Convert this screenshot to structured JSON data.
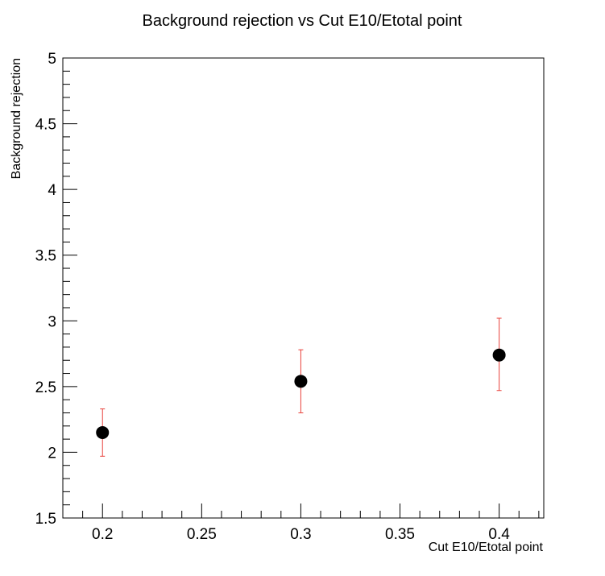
{
  "chart_data": {
    "type": "scatter",
    "title": "Background rejection vs Cut E10/Etotal point",
    "xlabel": "Cut E10/Etotal point",
    "ylabel": "Background rejection",
    "xlim": [
      0.18,
      0.4225
    ],
    "ylim": [
      1.5,
      5
    ],
    "x_ticks": [
      "0.2",
      "0.25",
      "0.3",
      "0.35",
      "0.4"
    ],
    "y_ticks": [
      "1.5",
      "2",
      "2.5",
      "3",
      "3.5",
      "4",
      "4.5",
      "5"
    ],
    "grid": false,
    "points": [
      {
        "x": 0.2,
        "y": 2.15,
        "err_low": 1.97,
        "err_high": 2.33
      },
      {
        "x": 0.3,
        "y": 2.54,
        "err_low": 2.3,
        "err_high": 2.78
      },
      {
        "x": 0.4,
        "y": 2.74,
        "err_low": 2.47,
        "err_high": 3.02
      }
    ],
    "marker_color": "#000000",
    "error_bar_color": "#e8403a"
  }
}
